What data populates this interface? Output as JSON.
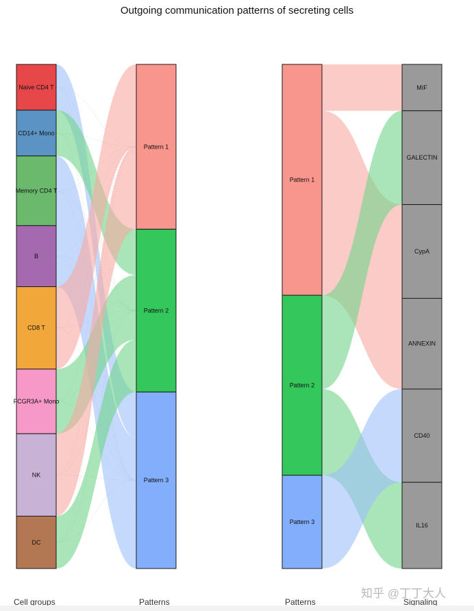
{
  "title": "Outgoing communication patterns of secreting cells",
  "watermark": "知乎 @丁丁大人",
  "axis_titles": {
    "cell_groups": "Cell groups",
    "patterns_left": "Patterns",
    "patterns_right": "Patterns",
    "signaling": "Signaling"
  },
  "colors": {
    "pattern_1": "#f8958c",
    "pattern_2": "#33c75c",
    "pattern_3": "#82aefb",
    "signaling_node": "#9a9a9a",
    "flow_pattern_1": "#f8a8a2",
    "flow_pattern_2": "#6fd48a",
    "flow_pattern_3": "#9cbff8"
  },
  "chart_data": [
    {
      "type": "alluvial",
      "panel": "cell groups to patterns",
      "source_axis": "Cell groups",
      "target_axis": "Patterns",
      "source_nodes": [
        {
          "label": "Naive CD4 T",
          "color": "#e8474a"
        },
        {
          "label": "CD14+ Mono",
          "color": "#5b93c4"
        },
        {
          "label": "Memory CD4 T",
          "color": "#6bb96c"
        },
        {
          "label": "B",
          "color": "#a569b0"
        },
        {
          "label": "CD8 T",
          "color": "#f2a73b"
        },
        {
          "label": "FCGR3A+ Mono",
          "color": "#f799c8"
        },
        {
          "label": "NK",
          "color": "#c8b3d6"
        },
        {
          "label": "DC",
          "color": "#b47754"
        }
      ],
      "target_nodes": [
        {
          "label": "Pattern 1",
          "color": "#f8958c"
        },
        {
          "label": "Pattern 2",
          "color": "#33c75c"
        },
        {
          "label": "Pattern 3",
          "color": "#82aefb"
        }
      ],
      "flows": [
        {
          "source": "Naive CD4 T",
          "target": "Pattern 3",
          "value": 0.09
        },
        {
          "source": "CD14+ Mono",
          "target": "Pattern 2",
          "value": 0.09
        },
        {
          "source": "Memory CD4 T",
          "target": "Pattern 3",
          "value": 0.137
        },
        {
          "source": "B",
          "target": "Pattern 3",
          "value": 0.12
        },
        {
          "source": "CD8 T",
          "target": "Pattern 1",
          "value": 0.162
        },
        {
          "source": "FCGR3A+ Mono",
          "target": "Pattern 2",
          "value": 0.127
        },
        {
          "source": "NK",
          "target": "Pattern 1",
          "value": 0.162
        },
        {
          "source": "DC",
          "target": "Pattern 2",
          "value": 0.103
        }
      ]
    },
    {
      "type": "alluvial",
      "panel": "patterns to signaling",
      "source_axis": "Patterns",
      "target_axis": "Signaling",
      "source_nodes": [
        {
          "label": "Pattern 1",
          "color": "#f8958c"
        },
        {
          "label": "Pattern 2",
          "color": "#33c75c"
        },
        {
          "label": "Pattern 3",
          "color": "#82aefb"
        }
      ],
      "target_nodes": [
        {
          "label": "MIF",
          "color": "#9a9a9a"
        },
        {
          "label": "GALECTIN",
          "color": "#9a9a9a"
        },
        {
          "label": "CypA",
          "color": "#9a9a9a"
        },
        {
          "label": "ANNEXIN",
          "color": "#9a9a9a"
        },
        {
          "label": "CD40",
          "color": "#9a9a9a"
        },
        {
          "label": "IL16",
          "color": "#9a9a9a"
        }
      ],
      "flows": [
        {
          "source": "Pattern 1",
          "target": "MIF",
          "value": 0.092
        },
        {
          "source": "Pattern 1",
          "target": "CypA",
          "value": 0.186
        },
        {
          "source": "Pattern 1",
          "target": "ANNEXIN",
          "value": 0.18
        },
        {
          "source": "Pattern 2",
          "target": "GALECTIN",
          "value": 0.186
        },
        {
          "source": "Pattern 2",
          "target": "IL16",
          "value": 0.171
        },
        {
          "source": "Pattern 3",
          "target": "CD40",
          "value": 0.185
        }
      ]
    }
  ]
}
